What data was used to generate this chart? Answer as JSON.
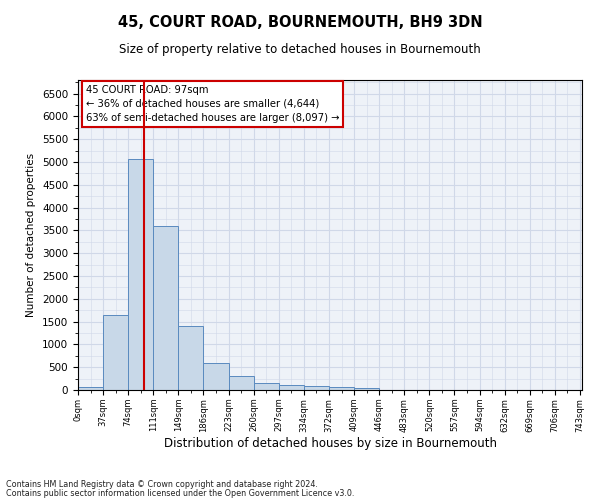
{
  "title": "45, COURT ROAD, BOURNEMOUTH, BH9 3DN",
  "subtitle": "Size of property relative to detached houses in Bournemouth",
  "xlabel": "Distribution of detached houses by size in Bournemouth",
  "ylabel": "Number of detached properties",
  "bin_labels": [
    "0sqm",
    "37sqm",
    "74sqm",
    "111sqm",
    "149sqm",
    "186sqm",
    "223sqm",
    "260sqm",
    "297sqm",
    "334sqm",
    "372sqm",
    "409sqm",
    "446sqm",
    "483sqm",
    "520sqm",
    "557sqm",
    "594sqm",
    "632sqm",
    "669sqm",
    "706sqm",
    "743sqm"
  ],
  "bar_heights": [
    60,
    1640,
    5060,
    3600,
    1400,
    600,
    300,
    150,
    120,
    90,
    55,
    40,
    0,
    0,
    0,
    0,
    0,
    0,
    0,
    0
  ],
  "bar_color": "#c8d8e8",
  "bar_edge_color": "#5a8abf",
  "grid_color": "#d0d8e8",
  "background_color": "#eef2f8",
  "property_line_x": 97,
  "annotation_text": "45 COURT ROAD: 97sqm\n← 36% of detached houses are smaller (4,644)\n63% of semi-detached houses are larger (8,097) →",
  "annotation_box_color": "#ffffff",
  "annotation_box_edge": "#cc0000",
  "property_line_color": "#cc0000",
  "ylim": [
    0,
    6800
  ],
  "yticks": [
    0,
    500,
    1000,
    1500,
    2000,
    2500,
    3000,
    3500,
    4000,
    4500,
    5000,
    5500,
    6000,
    6500
  ],
  "footer_line1": "Contains HM Land Registry data © Crown copyright and database right 2024.",
  "footer_line2": "Contains public sector information licensed under the Open Government Licence v3.0."
}
